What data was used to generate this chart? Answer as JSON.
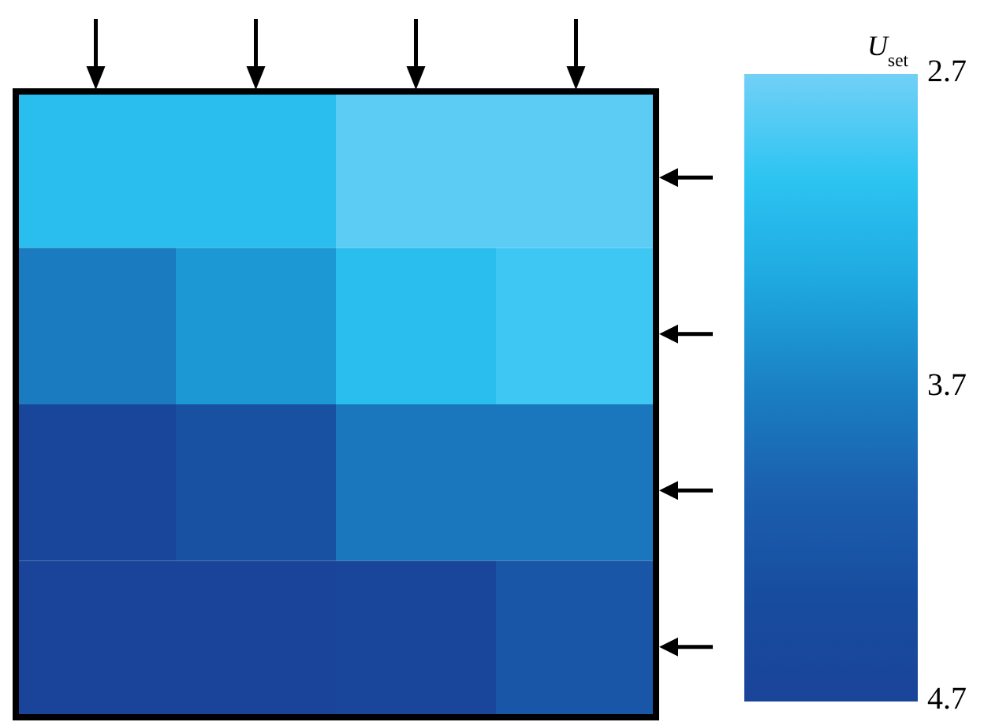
{
  "chart_data": {
    "type": "heatmap",
    "clabel": "U$_{set}$",
    "categories": [
      null,
      null,
      null,
      null
    ],
    "y_categories": [
      null,
      null,
      null,
      null
    ],
    "cells": [
      [
        3.1,
        3.1,
        2.8,
        2.8
      ],
      [
        3.75,
        3.5,
        3.1,
        2.95
      ],
      [
        4.6,
        4.3,
        3.8,
        3.8
      ],
      [
        4.7,
        4.7,
        4.6,
        4.2
      ]
    ],
    "clim": [
      2.7,
      4.7
    ],
    "cticks": [
      2.7,
      3.7,
      4.7
    ]
  }
}
